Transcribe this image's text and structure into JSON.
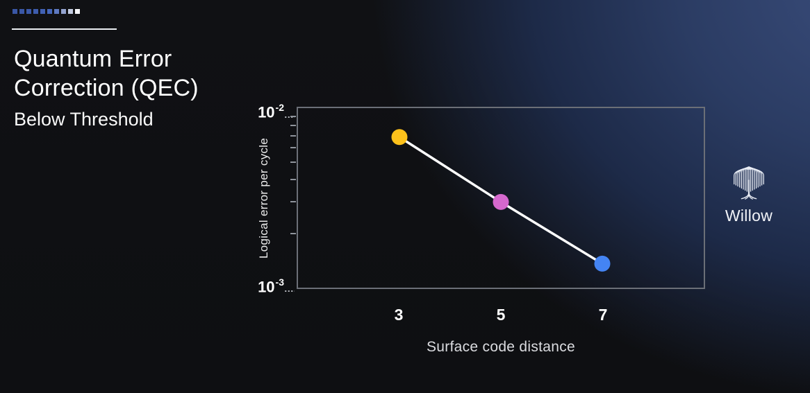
{
  "slide": {
    "title_line1": "Quantum Error",
    "title_line2": "Correction (QEC)",
    "subtitle": "Below Threshold",
    "decoration_dots": [
      "#3a57a6",
      "#3a57a6",
      "#3b59a9",
      "#3d5cad",
      "#4161b4",
      "#4667bb",
      "#5e7ac2",
      "#93a3cf",
      "#c3cbe0",
      "#f4f5f9"
    ]
  },
  "brand": {
    "label": "Willow",
    "icon": "willow-tree-icon",
    "icon_color": "#e9edf5"
  },
  "chart_data": {
    "type": "line",
    "title": "",
    "xlabel": "Surface code distance",
    "ylabel": "Logical error per cycle",
    "x": [
      3,
      5,
      7
    ],
    "y": [
      0.0069,
      0.003,
      0.00136
    ],
    "x_tick_labels": [
      "3",
      "5",
      "7"
    ],
    "y_ticks": [
      {
        "base": "10",
        "exp": "-2",
        "value": 0.01
      },
      {
        "base": "10",
        "exp": "-3",
        "value": 0.001
      }
    ],
    "y_minor_ticks": [
      0.009,
      0.008,
      0.007,
      0.006,
      0.005,
      0.004,
      0.003,
      0.002
    ],
    "xlim": [
      1,
      9
    ],
    "ylim": [
      0.001,
      0.01
    ],
    "yscale": "log",
    "grid": false,
    "legend": null,
    "line_color": "#ffffff",
    "line_width": 3.5,
    "marker_radius": 11.5,
    "point_colors": [
      "#fcc11b",
      "#d568cd",
      "#4484f3"
    ],
    "frame_color": "#6b6f77"
  }
}
